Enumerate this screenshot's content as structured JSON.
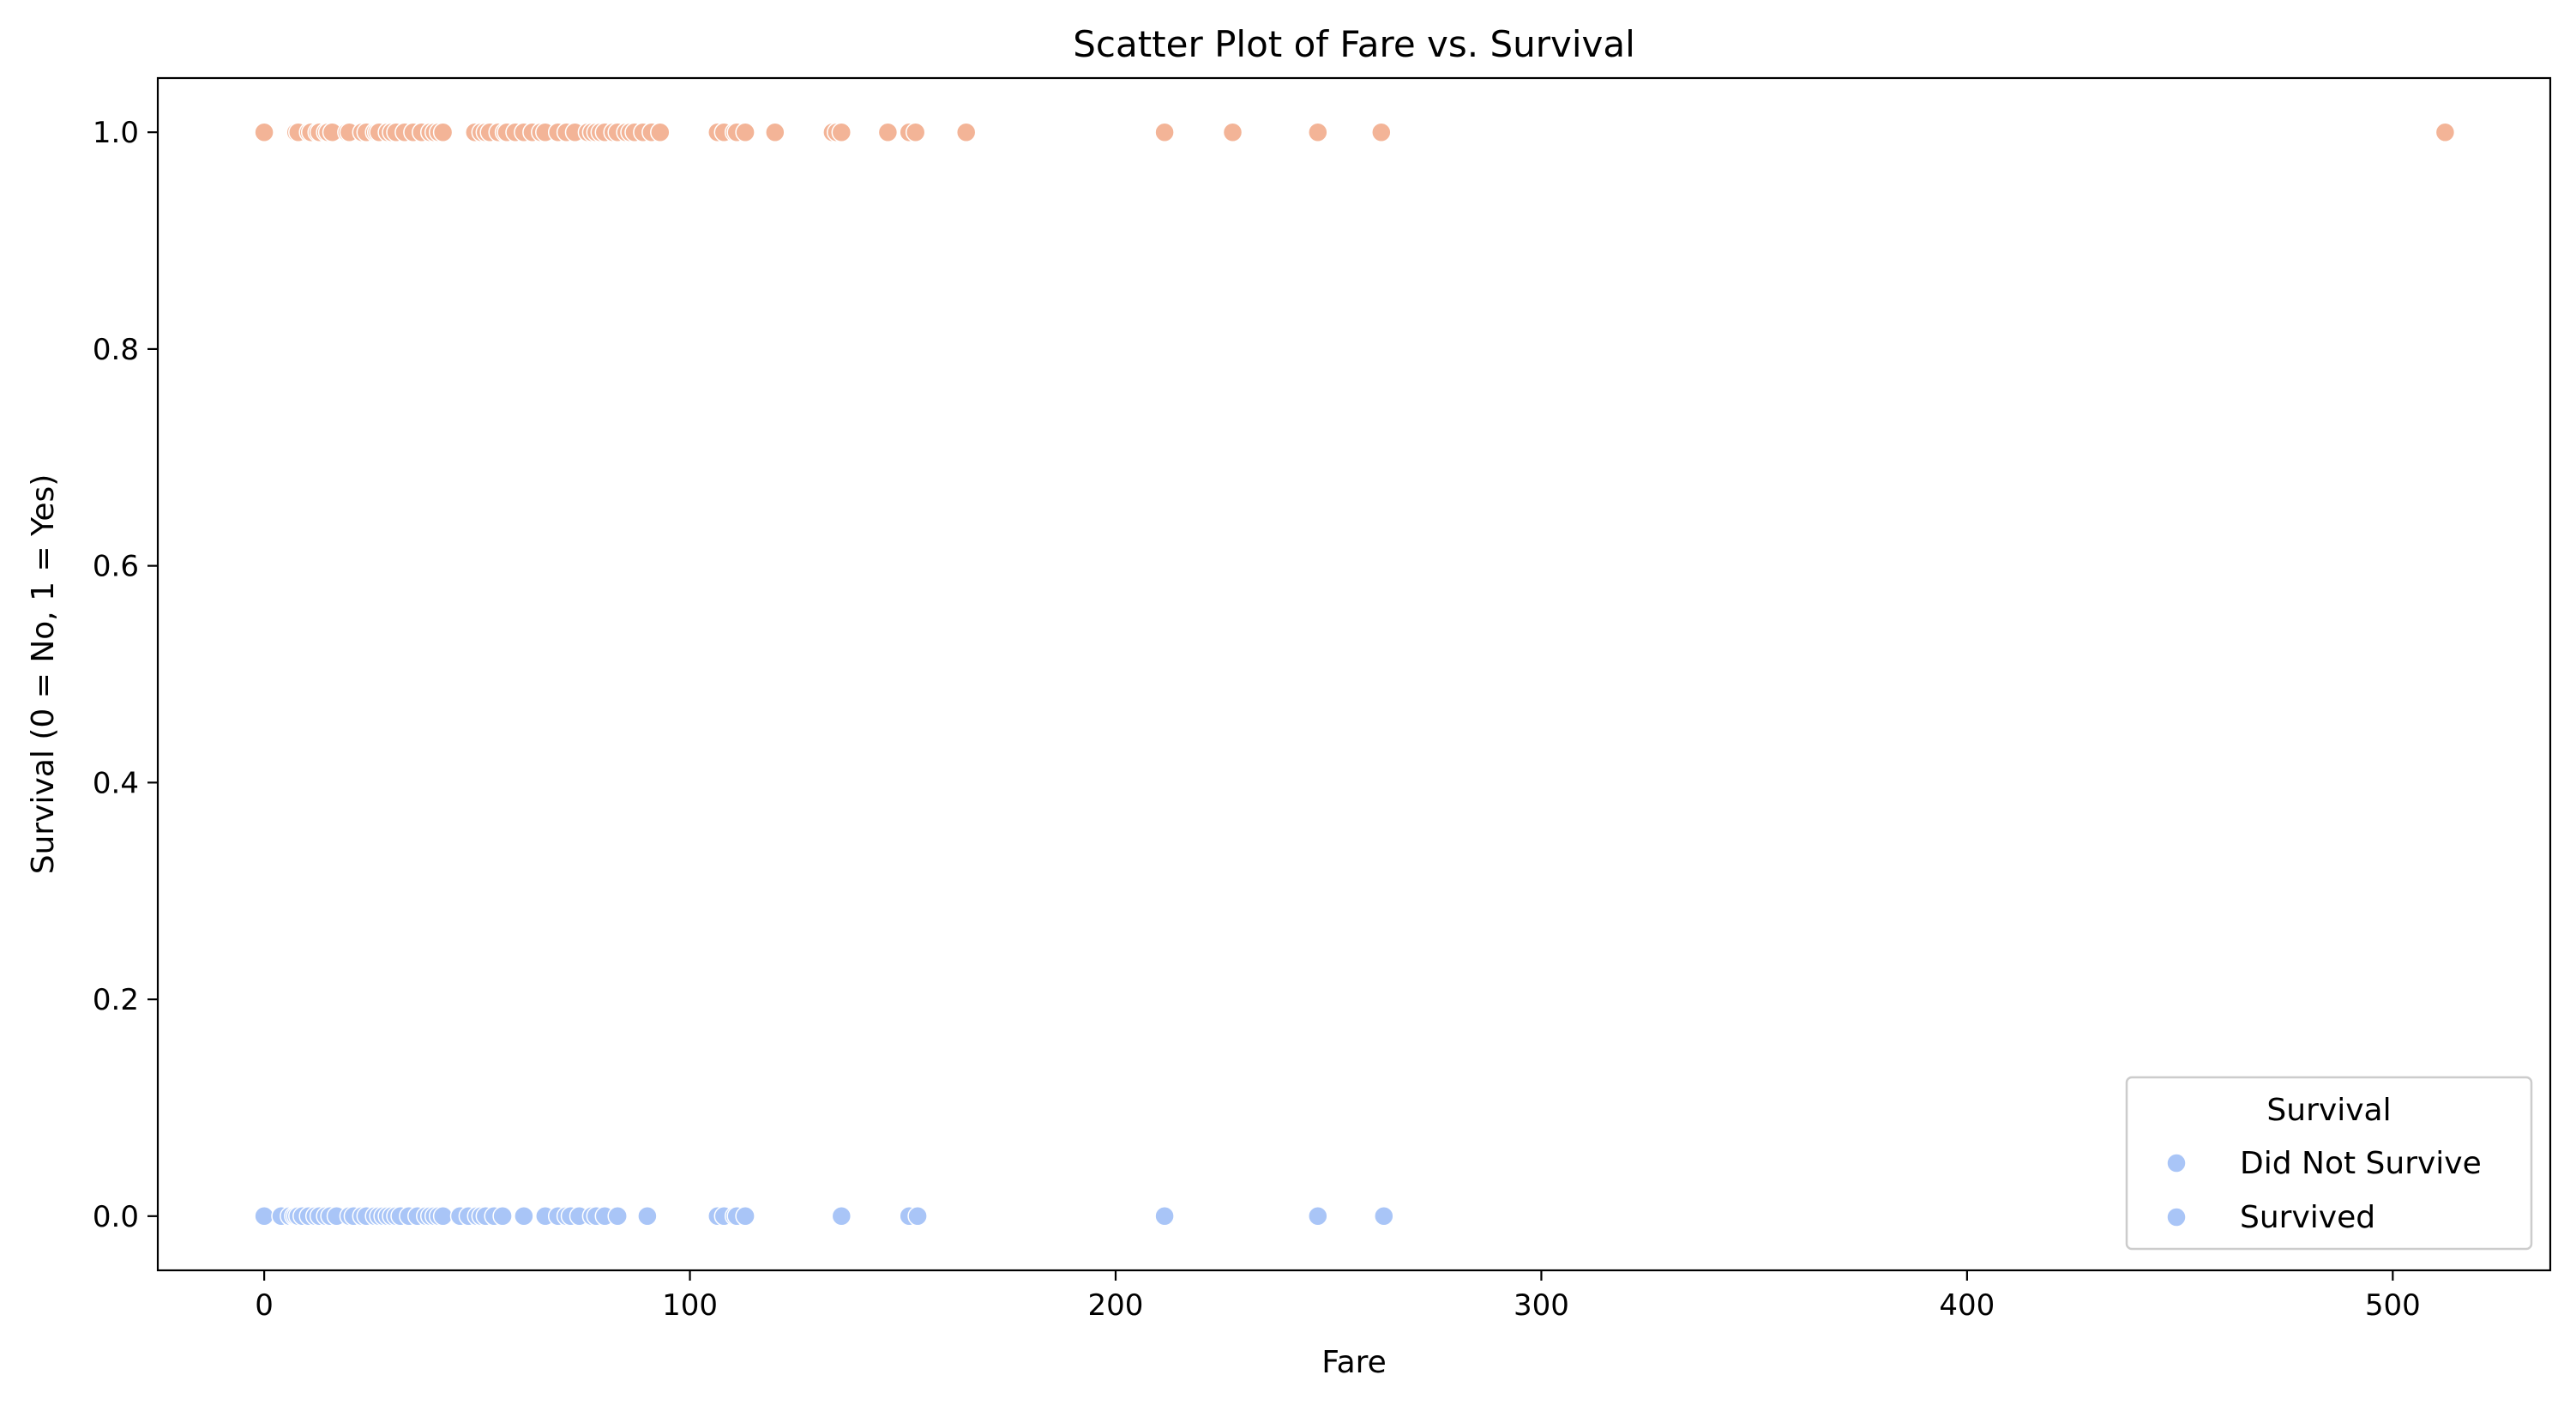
{
  "chart_data": {
    "type": "scatter",
    "title": "Scatter Plot of Fare vs. Survival",
    "xlabel": "Fare",
    "ylabel": "Survival (0 = No, 1 = Yes)",
    "xlim": [
      -25,
      537
    ],
    "ylim": [
      -0.05,
      1.05
    ],
    "xticks": [
      0,
      100,
      200,
      300,
      400,
      500
    ],
    "xtick_labels": [
      "0",
      "100",
      "200",
      "300",
      "400",
      "500"
    ],
    "yticks": [
      0.0,
      0.2,
      0.4,
      0.6,
      0.8,
      1.0
    ],
    "ytick_labels": [
      "0.0",
      "0.2",
      "0.4",
      "0.6",
      "0.8",
      "1.0"
    ],
    "grid": false,
    "legend": {
      "title": "Survival",
      "position": "lower right",
      "entries": [
        {
          "label": "Did Not Survive",
          "color": "#a9c5f7"
        },
        {
          "label": "Survived",
          "color": "#a9c5f7"
        }
      ]
    },
    "series": [
      {
        "color": "#f3b497",
        "points": [
          [
            0,
            1
          ],
          [
            7.5,
            1
          ],
          [
            8,
            1
          ],
          [
            10.5,
            1
          ],
          [
            11,
            1
          ],
          [
            12.5,
            1
          ],
          [
            13,
            1
          ],
          [
            14.5,
            1
          ],
          [
            15,
            1
          ],
          [
            16,
            1
          ],
          [
            19.5,
            1
          ],
          [
            20,
            1
          ],
          [
            23,
            1
          ],
          [
            24,
            1
          ],
          [
            26,
            1
          ],
          [
            26.5,
            1
          ],
          [
            27,
            1
          ],
          [
            29,
            1
          ],
          [
            30,
            1
          ],
          [
            31,
            1
          ],
          [
            33,
            1
          ],
          [
            35,
            1
          ],
          [
            37,
            1
          ],
          [
            39,
            1
          ],
          [
            40,
            1
          ],
          [
            41,
            1
          ],
          [
            42,
            1
          ],
          [
            49.5,
            1
          ],
          [
            51,
            1
          ],
          [
            52,
            1
          ],
          [
            53,
            1
          ],
          [
            55,
            1
          ],
          [
            56.5,
            1
          ],
          [
            57,
            1
          ],
          [
            59,
            1
          ],
          [
            61,
            1
          ],
          [
            63,
            1
          ],
          [
            65,
            1
          ],
          [
            66,
            1
          ],
          [
            69,
            1
          ],
          [
            71,
            1
          ],
          [
            73,
            1
          ],
          [
            76,
            1
          ],
          [
            77,
            1
          ],
          [
            78,
            1
          ],
          [
            79,
            1
          ],
          [
            80,
            1
          ],
          [
            82,
            1
          ],
          [
            83,
            1
          ],
          [
            85,
            1
          ],
          [
            86,
            1
          ],
          [
            87,
            1
          ],
          [
            89,
            1
          ],
          [
            91,
            1
          ],
          [
            93,
            1
          ],
          [
            106.5,
            1
          ],
          [
            108,
            1
          ],
          [
            110.5,
            1
          ],
          [
            111,
            1
          ],
          [
            113,
            1
          ],
          [
            120,
            1
          ],
          [
            133.5,
            1
          ],
          [
            134.5,
            1
          ],
          [
            135.6,
            1
          ],
          [
            146.5,
            1
          ],
          [
            151.5,
            1
          ],
          [
            153,
            1
          ],
          [
            164.9,
            1
          ],
          [
            211.5,
            1
          ],
          [
            227.5,
            1
          ],
          [
            247.5,
            1
          ],
          [
            262.4,
            1
          ],
          [
            512.3,
            1
          ]
        ]
      },
      {
        "color": "#a9c5f7",
        "points": [
          [
            0,
            0
          ],
          [
            4,
            0
          ],
          [
            6,
            0
          ],
          [
            7,
            0
          ],
          [
            7.5,
            0
          ],
          [
            8,
            0
          ],
          [
            9,
            0
          ],
          [
            10.5,
            0
          ],
          [
            12,
            0
          ],
          [
            13,
            0
          ],
          [
            14.5,
            0
          ],
          [
            15.5,
            0
          ],
          [
            17,
            0
          ],
          [
            20,
            0
          ],
          [
            21,
            0
          ],
          [
            23,
            0
          ],
          [
            24,
            0
          ],
          [
            26,
            0
          ],
          [
            27,
            0
          ],
          [
            28,
            0
          ],
          [
            29,
            0
          ],
          [
            30,
            0
          ],
          [
            31,
            0
          ],
          [
            32,
            0
          ],
          [
            34,
            0
          ],
          [
            36,
            0
          ],
          [
            38,
            0
          ],
          [
            39,
            0
          ],
          [
            40,
            0
          ],
          [
            41,
            0
          ],
          [
            42,
            0
          ],
          [
            46,
            0
          ],
          [
            48,
            0
          ],
          [
            50,
            0
          ],
          [
            51,
            0
          ],
          [
            52,
            0
          ],
          [
            54,
            0
          ],
          [
            56,
            0
          ],
          [
            61,
            0
          ],
          [
            66,
            0
          ],
          [
            69,
            0
          ],
          [
            71,
            0
          ],
          [
            72,
            0
          ],
          [
            74,
            0
          ],
          [
            77,
            0
          ],
          [
            78,
            0
          ],
          [
            80,
            0
          ],
          [
            83,
            0
          ],
          [
            90,
            0
          ],
          [
            106.5,
            0
          ],
          [
            108,
            0
          ],
          [
            110.5,
            0
          ],
          [
            111,
            0
          ],
          [
            113,
            0
          ],
          [
            135.6,
            0
          ],
          [
            151.5,
            0
          ],
          [
            153.5,
            0
          ],
          [
            211.5,
            0
          ],
          [
            247.5,
            0
          ],
          [
            263,
            0
          ]
        ]
      }
    ]
  }
}
